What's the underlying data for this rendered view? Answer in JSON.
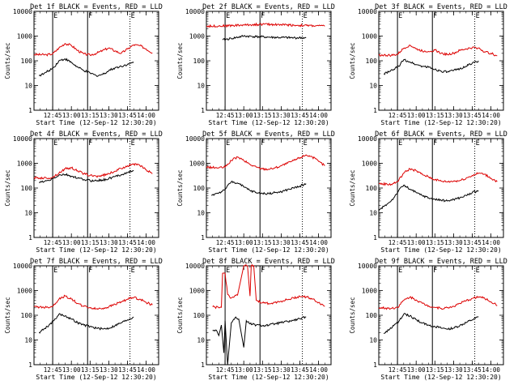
{
  "figure": {
    "colors": {
      "events": "#000000",
      "lld": "#dd0000",
      "background": "#ffffff"
    }
  },
  "chart_data": [
    {
      "type": "line",
      "title": "Det 1f BLACK = Events, RED = LLD",
      "xlabel": "Start Time (12-Sep-12 12:30:20)",
      "ylabel": "Counts/sec",
      "yscale": "log",
      "ylim": [
        1,
        10000
      ],
      "yticks": [
        1,
        10,
        100,
        1000,
        10000
      ],
      "xtick_labels": [
        "12:45",
        "13:00",
        "13:15",
        "13:30",
        "13:45",
        "14:00"
      ],
      "markers": [
        "E",
        "F",
        "E"
      ],
      "series": [
        {
          "color": "#dd0000",
          "x": [
            "12:30",
            "12:40",
            "12:45",
            "12:50",
            "12:55",
            "13:00",
            "13:05",
            "13:10",
            "13:15",
            "13:20",
            "13:25",
            "13:30",
            "13:35",
            "13:40",
            "13:45",
            "13:50",
            "13:55",
            "14:00",
            "14:05"
          ],
          "values": [
            180,
            175,
            190,
            330,
            500,
            420,
            260,
            190,
            170,
            200,
            260,
            330,
            250,
            200,
            300,
            440,
            410,
            300,
            210
          ]
        },
        {
          "color": "#000000",
          "x": [
            "12:34",
            "12:38",
            "12:42",
            "12:46",
            "12:50",
            "12:55",
            "13:00",
            "13:05",
            "13:10",
            "13:15",
            "13:20",
            "13:25",
            "13:30",
            "13:35",
            "13:40",
            "13:45",
            "13:50"
          ],
          "values": [
            25,
            30,
            40,
            55,
            100,
            120,
            85,
            55,
            40,
            32,
            25,
            28,
            40,
            52,
            60,
            72,
            85
          ]
        }
      ]
    },
    {
      "type": "line",
      "title": "Det 2f BLACK = Events, RED = LLD",
      "xlabel": "Start Time (12-Sep-12 12:30:20)",
      "ylabel": "Counts/sec",
      "yscale": "log",
      "ylim": [
        1,
        10000
      ],
      "yticks": [
        1,
        10,
        100,
        1000,
        10000
      ],
      "xtick_labels": [
        "12:45",
        "13:00",
        "13:15",
        "13:30",
        "13:45",
        "14:00"
      ],
      "markers": [
        "E",
        "F",
        "E"
      ],
      "series": [
        {
          "color": "#dd0000",
          "x": [
            "12:30",
            "12:45",
            "13:00",
            "13:15",
            "13:30",
            "13:45",
            "14:00",
            "14:05"
          ],
          "values": [
            2500,
            2600,
            2800,
            3000,
            2900,
            2700,
            2600,
            2500
          ]
        },
        {
          "color": "#000000",
          "x": [
            "12:43",
            "12:50",
            "13:00",
            "13:10",
            "13:20",
            "13:30",
            "13:40",
            "13:50"
          ],
          "values": [
            700,
            800,
            1000,
            950,
            900,
            870,
            850,
            850
          ]
        }
      ]
    },
    {
      "type": "line",
      "title": "Det 3f BLACK = Events, RED = LLD",
      "xlabel": "Start Time (12-Sep-12 12:30:20)",
      "ylabel": "Counts/sec",
      "yscale": "log",
      "ylim": [
        1,
        10000
      ],
      "yticks": [
        1,
        10,
        100,
        1000,
        10000
      ],
      "xtick_labels": [
        "12:45",
        "13:00",
        "13:15",
        "13:30",
        "13:45",
        "14:00"
      ],
      "markers": [
        "E",
        "F",
        "E"
      ],
      "series": [
        {
          "color": "#dd0000",
          "x": [
            "12:30",
            "12:40",
            "12:45",
            "12:50",
            "12:55",
            "13:00",
            "13:05",
            "13:10",
            "13:15",
            "13:20",
            "13:25",
            "13:30",
            "13:35",
            "13:40",
            "13:45",
            "13:50",
            "13:55",
            "14:00",
            "14:05"
          ],
          "values": [
            170,
            165,
            180,
            320,
            430,
            300,
            250,
            240,
            270,
            200,
            180,
            200,
            260,
            300,
            340,
            330,
            230,
            200,
            160
          ]
        },
        {
          "color": "#000000",
          "x": [
            "12:34",
            "12:38",
            "12:42",
            "12:46",
            "12:50",
            "12:55",
            "13:00",
            "13:05",
            "13:10",
            "13:15",
            "13:20",
            "13:25",
            "13:30",
            "13:35",
            "13:40",
            "13:45",
            "13:50"
          ],
          "values": [
            30,
            35,
            45,
            60,
            110,
            90,
            70,
            60,
            55,
            45,
            38,
            35,
            40,
            48,
            60,
            80,
            100
          ]
        }
      ]
    },
    {
      "type": "line",
      "title": "Det 4f BLACK = Events, RED = LLD",
      "xlabel": "Start Time (12-Sep-12 12:30:20)",
      "ylabel": "Counts/sec",
      "yscale": "log",
      "ylim": [
        1,
        10000
      ],
      "yticks": [
        1,
        10,
        100,
        1000,
        10000
      ],
      "xtick_labels": [
        "12:45",
        "13:00",
        "13:15",
        "13:30",
        "13:45",
        "14:00"
      ],
      "markers": [
        "E",
        "F",
        "E"
      ],
      "series": [
        {
          "color": "#dd0000",
          "x": [
            "12:30",
            "12:40",
            "12:45",
            "12:50",
            "12:55",
            "13:00",
            "13:05",
            "13:10",
            "13:15",
            "13:20",
            "13:25",
            "13:30",
            "13:35",
            "13:40",
            "13:45",
            "13:50",
            "13:55",
            "14:00",
            "14:05"
          ],
          "values": [
            260,
            250,
            270,
            400,
            600,
            650,
            500,
            380,
            320,
            300,
            320,
            380,
            480,
            620,
            800,
            950,
            800,
            550,
            380
          ]
        },
        {
          "color": "#000000",
          "x": [
            "12:34",
            "12:38",
            "12:42",
            "12:46",
            "12:50",
            "12:55",
            "13:00",
            "13:05",
            "13:10",
            "13:15",
            "13:20",
            "13:25",
            "13:30",
            "13:35",
            "13:40",
            "13:45",
            "13:50"
          ],
          "values": [
            170,
            180,
            200,
            250,
            330,
            350,
            300,
            250,
            220,
            200,
            200,
            210,
            240,
            290,
            350,
            420,
            500
          ]
        }
      ]
    },
    {
      "type": "line",
      "title": "Det 5f BLACK = Events, RED = LLD",
      "xlabel": "Start Time (12-Sep-12 12:30:20)",
      "ylabel": "Counts/sec",
      "yscale": "log",
      "ylim": [
        1,
        10000
      ],
      "yticks": [
        1,
        10,
        100,
        1000,
        10000
      ],
      "xtick_labels": [
        "12:45",
        "13:00",
        "13:15",
        "13:30",
        "13:45",
        "14:00"
      ],
      "markers": [
        "E",
        "F",
        "E"
      ],
      "series": [
        {
          "color": "#dd0000",
          "x": [
            "12:30",
            "12:40",
            "12:45",
            "12:50",
            "12:55",
            "13:00",
            "13:05",
            "13:10",
            "13:15",
            "13:20",
            "13:25",
            "13:30",
            "13:35",
            "13:40",
            "13:45",
            "13:50",
            "13:55",
            "14:00",
            "14:05"
          ],
          "values": [
            700,
            650,
            700,
            1300,
            1800,
            1300,
            900,
            700,
            600,
            580,
            650,
            800,
            1000,
            1300,
            1700,
            2200,
            1800,
            1200,
            800
          ]
        },
        {
          "color": "#000000",
          "x": [
            "12:34",
            "12:38",
            "12:42",
            "12:46",
            "12:50",
            "12:55",
            "13:00",
            "13:05",
            "13:10",
            "13:15",
            "13:20",
            "13:25",
            "13:30",
            "13:35",
            "13:40",
            "13:45",
            "13:50"
          ],
          "values": [
            50,
            60,
            70,
            100,
            180,
            160,
            110,
            80,
            65,
            60,
            60,
            65,
            70,
            85,
            100,
            120,
            150
          ]
        }
      ]
    },
    {
      "type": "line",
      "title": "Det 6f BLACK = Events, RED = LLD",
      "xlabel": "Start Time (12-Sep-12 12:30:20)",
      "ylabel": "Counts/sec",
      "yscale": "log",
      "ylim": [
        1,
        10000
      ],
      "yticks": [
        1,
        10,
        100,
        1000,
        10000
      ],
      "xtick_labels": [
        "12:45",
        "13:00",
        "13:15",
        "13:30",
        "13:45",
        "14:00"
      ],
      "markers": [
        "E",
        "F",
        "E"
      ],
      "series": [
        {
          "color": "#dd0000",
          "x": [
            "12:30",
            "12:40",
            "12:45",
            "12:50",
            "12:55",
            "13:00",
            "13:05",
            "13:10",
            "13:15",
            "13:20",
            "13:25",
            "13:30",
            "13:35",
            "13:40",
            "13:45",
            "13:50",
            "13:55",
            "14:00",
            "14:05"
          ],
          "values": [
            150,
            140,
            180,
            400,
            600,
            500,
            350,
            280,
            220,
            190,
            180,
            190,
            200,
            250,
            320,
            400,
            360,
            250,
            180
          ]
        },
        {
          "color": "#000000",
          "x": [
            "12:30",
            "12:34",
            "12:38",
            "12:42",
            "12:46",
            "12:50",
            "12:55",
            "13:00",
            "13:05",
            "13:10",
            "13:15",
            "13:20",
            "13:25",
            "13:30",
            "13:35",
            "13:40",
            "13:45",
            "13:50"
          ],
          "values": [
            12,
            18,
            25,
            40,
            80,
            130,
            90,
            65,
            50,
            40,
            35,
            32,
            30,
            35,
            40,
            50,
            65,
            80
          ]
        }
      ]
    },
    {
      "type": "line",
      "title": "Det 7f BLACK = Events, RED = LLD",
      "xlabel": "Start Time (12-Sep-12 12:30:20)",
      "ylabel": "Counts/sec",
      "yscale": "log",
      "ylim": [
        1,
        10000
      ],
      "yticks": [
        1,
        10,
        100,
        1000,
        10000
      ],
      "xtick_labels": [
        "12:45",
        "13:00",
        "13:15",
        "13:30",
        "13:45",
        "14:00"
      ],
      "markers": [
        "E",
        "F",
        "E"
      ],
      "series": [
        {
          "color": "#dd0000",
          "x": [
            "12:30",
            "12:40",
            "12:45",
            "12:50",
            "12:55",
            "13:00",
            "13:05",
            "13:10",
            "13:15",
            "13:20",
            "13:25",
            "13:30",
            "13:35",
            "13:40",
            "13:45",
            "13:50",
            "13:55",
            "14:00",
            "14:05"
          ],
          "values": [
            220,
            210,
            230,
            450,
            600,
            450,
            300,
            230,
            200,
            180,
            190,
            220,
            280,
            350,
            450,
            520,
            450,
            330,
            260
          ]
        },
        {
          "color": "#000000",
          "x": [
            "12:34",
            "12:38",
            "12:42",
            "12:46",
            "12:50",
            "12:55",
            "13:00",
            "13:05",
            "13:10",
            "13:15",
            "13:20",
            "13:25",
            "13:30",
            "13:35",
            "13:40",
            "13:45",
            "13:50"
          ],
          "values": [
            20,
            28,
            40,
            60,
            110,
            95,
            70,
            50,
            40,
            35,
            30,
            28,
            30,
            38,
            50,
            65,
            85
          ]
        }
      ]
    },
    {
      "type": "line",
      "title": "Det 8f BLACK = Events, RED = LLD",
      "xlabel": "Start Time (12-Sep-12 12:30:20)",
      "ylabel": "Counts/sec",
      "yscale": "log",
      "ylim": [
        1,
        10000
      ],
      "yticks": [
        1,
        10,
        100,
        1000,
        10000
      ],
      "xtick_labels": [
        "12:45",
        "13:00",
        "13:15",
        "13:30",
        "13:45",
        "14:00"
      ],
      "markers": [
        "E",
        "F",
        "E"
      ],
      "series": [
        {
          "color": "#dd0000",
          "x": [
            "12:35",
            "12:40",
            "12:42",
            "12:43",
            "12:45",
            "12:47",
            "12:50",
            "12:55",
            "13:00",
            "13:03",
            "13:05",
            "13:06",
            "13:08",
            "13:10",
            "13:15",
            "13:20",
            "13:25",
            "13:30",
            "13:35",
            "13:40",
            "13:45",
            "13:50",
            "13:55",
            "14:00",
            "14:05"
          ],
          "values": [
            220,
            200,
            210,
            5000,
            5000,
            700,
            500,
            650,
            10000,
            10000,
            600,
            10000,
            10000,
            400,
            320,
            300,
            330,
            370,
            430,
            500,
            580,
            560,
            450,
            330,
            230
          ]
        },
        {
          "color": "#000000",
          "x": [
            "12:35",
            "12:38",
            "12:40",
            "12:42",
            "12:44",
            "12:45",
            "12:47",
            "12:50",
            "12:53",
            "12:56",
            "13:00",
            "13:02",
            "13:05",
            "13:10",
            "13:15",
            "13:20",
            "13:25",
            "13:30",
            "13:35",
            "13:40",
            "13:45",
            "13:50"
          ],
          "values": [
            25,
            25,
            15,
            40,
            3,
            60,
            1,
            50,
            80,
            70,
            5,
            60,
            45,
            40,
            38,
            40,
            45,
            50,
            55,
            62,
            72,
            85
          ]
        }
      ]
    },
    {
      "type": "line",
      "title": "Det 9f BLACK = Events, RED = LLD",
      "xlabel": "Start Time (12-Sep-12 12:30:20)",
      "ylabel": "Counts/sec",
      "yscale": "log",
      "ylim": [
        1,
        10000
      ],
      "yticks": [
        1,
        10,
        100,
        1000,
        10000
      ],
      "xtick_labels": [
        "12:45",
        "13:00",
        "13:15",
        "13:30",
        "13:45",
        "14:00"
      ],
      "markers": [
        "E",
        "F",
        "E"
      ],
      "series": [
        {
          "color": "#dd0000",
          "x": [
            "12:30",
            "12:40",
            "12:45",
            "12:50",
            "12:55",
            "13:00",
            "13:05",
            "13:10",
            "13:15",
            "13:20",
            "13:25",
            "13:30",
            "13:35",
            "13:40",
            "13:45",
            "13:50",
            "13:55",
            "14:00",
            "14:05"
          ],
          "values": [
            200,
            190,
            210,
            400,
            550,
            420,
            300,
            240,
            210,
            190,
            200,
            230,
            300,
            380,
            480,
            560,
            480,
            350,
            250
          ]
        },
        {
          "color": "#000000",
          "x": [
            "12:34",
            "12:38",
            "12:42",
            "12:46",
            "12:50",
            "12:55",
            "13:00",
            "13:05",
            "13:10",
            "13:15",
            "13:20",
            "13:25",
            "13:30",
            "13:35",
            "13:40",
            "13:45",
            "13:50"
          ],
          "values": [
            18,
            25,
            38,
            55,
            110,
            95,
            65,
            48,
            40,
            35,
            30,
            28,
            30,
            38,
            50,
            65,
            85
          ]
        }
      ]
    }
  ]
}
